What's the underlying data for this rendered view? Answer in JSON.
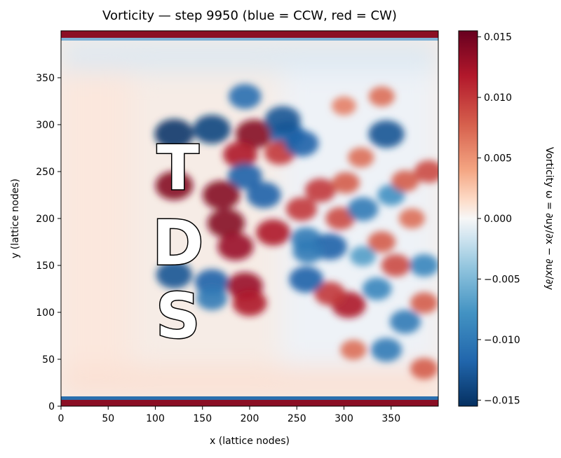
{
  "chart_data": {
    "type": "heatmap",
    "title": "Vorticity — step 9950  (blue = CCW, red = CW)",
    "xlabel": "x (lattice nodes)",
    "ylabel": "y (lattice nodes)",
    "xlim": [
      0,
      400
    ],
    "ylim": [
      0,
      400
    ],
    "x_ticks": [
      0,
      50,
      100,
      150,
      200,
      250,
      300,
      350
    ],
    "y_ticks": [
      0,
      50,
      100,
      150,
      200,
      250,
      300,
      350
    ],
    "colorbar": {
      "label": "Vorticity ω = ∂uy/∂x − ∂ux/∂y",
      "range": [
        -0.0155,
        0.0155
      ],
      "ticks": [
        0.015,
        0.01,
        0.005,
        0.0,
        -0.005,
        -0.01,
        -0.015
      ],
      "tick_labels": [
        "0.015",
        "0.010",
        "0.005",
        "0.000",
        "−0.005",
        "−0.010",
        "−0.015"
      ],
      "colormap": "RdBu_r",
      "low_color": "#053061",
      "mid_color": "#f7f7f7",
      "high_color": "#67001f"
    },
    "obstacle_letters": [
      {
        "text": "T",
        "x": 124,
        "y": 255
      },
      {
        "text": "D",
        "x": 124,
        "y": 175
      },
      {
        "text": "S",
        "x": 124,
        "y": 97
      }
    ],
    "vortices": [
      {
        "x": 120,
        "y": 290,
        "w": -0.015
      },
      {
        "x": 160,
        "y": 295,
        "w": -0.014
      },
      {
        "x": 205,
        "y": 290,
        "w": 0.014
      },
      {
        "x": 190,
        "y": 268,
        "w": 0.012
      },
      {
        "x": 240,
        "y": 290,
        "w": -0.012
      },
      {
        "x": 232,
        "y": 270,
        "w": 0.01
      },
      {
        "x": 195,
        "y": 330,
        "w": -0.011
      },
      {
        "x": 235,
        "y": 305,
        "w": -0.013
      },
      {
        "x": 255,
        "y": 280,
        "w": -0.012
      },
      {
        "x": 195,
        "y": 245,
        "w": -0.012
      },
      {
        "x": 120,
        "y": 235,
        "w": 0.014
      },
      {
        "x": 170,
        "y": 225,
        "w": 0.014
      },
      {
        "x": 215,
        "y": 225,
        "w": -0.012
      },
      {
        "x": 175,
        "y": 195,
        "w": 0.014
      },
      {
        "x": 185,
        "y": 170,
        "w": 0.013
      },
      {
        "x": 225,
        "y": 185,
        "w": 0.012
      },
      {
        "x": 120,
        "y": 140,
        "w": -0.013
      },
      {
        "x": 160,
        "y": 132,
        "w": -0.012
      },
      {
        "x": 195,
        "y": 128,
        "w": 0.013
      },
      {
        "x": 200,
        "y": 110,
        "w": 0.012
      },
      {
        "x": 160,
        "y": 115,
        "w": -0.01
      },
      {
        "x": 255,
        "y": 210,
        "w": 0.01
      },
      {
        "x": 260,
        "y": 178,
        "w": -0.01
      },
      {
        "x": 285,
        "y": 170,
        "w": -0.012
      },
      {
        "x": 275,
        "y": 230,
        "w": 0.01
      },
      {
        "x": 345,
        "y": 290,
        "w": -0.013
      },
      {
        "x": 318,
        "y": 265,
        "w": 0.007
      },
      {
        "x": 302,
        "y": 238,
        "w": 0.008
      },
      {
        "x": 296,
        "y": 200,
        "w": 0.009
      },
      {
        "x": 305,
        "y": 108,
        "w": 0.012
      },
      {
        "x": 285,
        "y": 120,
        "w": 0.01
      },
      {
        "x": 260,
        "y": 135,
        "w": -0.012
      },
      {
        "x": 262,
        "y": 165,
        "w": -0.01
      },
      {
        "x": 320,
        "y": 210,
        "w": -0.01
      },
      {
        "x": 350,
        "y": 225,
        "w": -0.008
      },
      {
        "x": 365,
        "y": 240,
        "w": 0.008
      },
      {
        "x": 372,
        "y": 200,
        "w": 0.007
      },
      {
        "x": 340,
        "y": 175,
        "w": 0.008
      },
      {
        "x": 335,
        "y": 125,
        "w": -0.009
      },
      {
        "x": 345,
        "y": 60,
        "w": -0.01
      },
      {
        "x": 365,
        "y": 90,
        "w": -0.01
      },
      {
        "x": 385,
        "y": 150,
        "w": -0.009
      },
      {
        "x": 390,
        "y": 250,
        "w": 0.009
      },
      {
        "x": 310,
        "y": 60,
        "w": 0.007
      },
      {
        "x": 385,
        "y": 40,
        "w": 0.008
      },
      {
        "x": 385,
        "y": 110,
        "w": 0.008
      },
      {
        "x": 340,
        "y": 330,
        "w": 0.007
      },
      {
        "x": 300,
        "y": 320,
        "w": 0.006
      },
      {
        "x": 320,
        "y": 160,
        "w": -0.007
      },
      {
        "x": 355,
        "y": 150,
        "w": 0.009
      }
    ]
  }
}
